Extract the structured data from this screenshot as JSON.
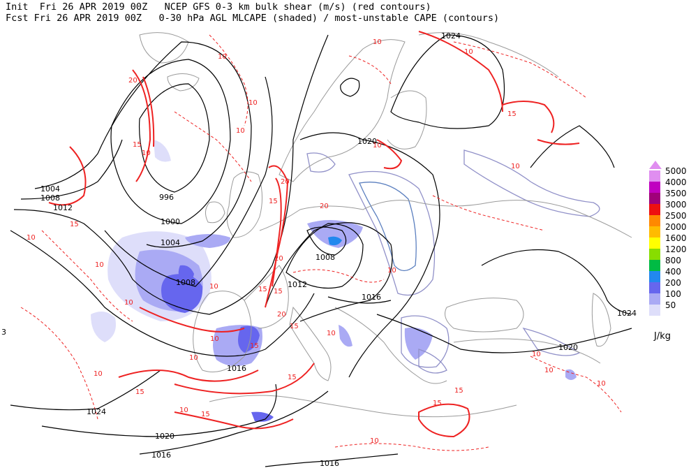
{
  "header": {
    "init_line": "Init  Fri 26 APR 2019 00Z   NCEP GFS 0-3 km bulk shear (m/s) (red contours)",
    "fcst_line": "Fcst Fri 26 APR 2019 00Z   0-30 hPa AGL MLCAPE (shaded) / most-unstable CAPE (contours)"
  },
  "legend": {
    "units": "J/kg",
    "items": [
      {
        "label": "5000",
        "color": "#e08ef0"
      },
      {
        "label": "4000",
        "color": "#c000c0"
      },
      {
        "label": "3500",
        "color": "#a0007a"
      },
      {
        "label": "3000",
        "color": "#ee1010"
      },
      {
        "label": "2500",
        "color": "#ff8800"
      },
      {
        "label": "2000",
        "color": "#ffbb00"
      },
      {
        "label": "1600",
        "color": "#ffff00"
      },
      {
        "label": "1200",
        "color": "#88dd00"
      },
      {
        "label": "800",
        "color": "#00bb44"
      },
      {
        "label": "400",
        "color": "#2288ee"
      },
      {
        "label": "200",
        "color": "#6666ee"
      },
      {
        "label": "100",
        "color": "#aaaaf4"
      },
      {
        "label": "50",
        "color": "#dedefa"
      }
    ]
  },
  "map": {
    "colors": {
      "pressure": "#000000",
      "shear": "#ee2222",
      "cape": "#9090c8",
      "coast": "#9a9a9a"
    },
    "pressure_labels": [
      {
        "text": "1024",
        "id": "p1024-ne"
      },
      {
        "text": "1020",
        "id": "p1020-n"
      },
      {
        "text": "1004",
        "id": "p1004-w1"
      },
      {
        "text": "1008",
        "id": "p1008-w1"
      },
      {
        "text": "1012",
        "id": "p1012-w"
      },
      {
        "text": "996",
        "id": "p996"
      },
      {
        "text": "1000",
        "id": "p1000"
      },
      {
        "text": "1004",
        "id": "p1004-w2"
      },
      {
        "text": "1008",
        "id": "p1008-w2"
      },
      {
        "text": "1008",
        "id": "p1008-c"
      },
      {
        "text": "1012",
        "id": "p1012-c"
      },
      {
        "text": "1016",
        "id": "p1016-c"
      },
      {
        "text": "1016",
        "id": "p1016-sw"
      },
      {
        "text": "1024",
        "id": "p1024-e"
      },
      {
        "text": "1020",
        "id": "p1020-se"
      },
      {
        "text": "1024",
        "id": "p1024-sw"
      },
      {
        "text": "1020",
        "id": "p1020-s"
      },
      {
        "text": "1016",
        "id": "p1016-s"
      },
      {
        "text": "1016",
        "id": "p1016-bot"
      },
      {
        "text": "3",
        "id": "p-edge"
      }
    ],
    "shear_labels": [
      {
        "text": "10"
      },
      {
        "text": "20"
      },
      {
        "text": "15"
      },
      {
        "text": "10"
      },
      {
        "text": "10"
      },
      {
        "text": "15"
      },
      {
        "text": "10"
      },
      {
        "text": "20"
      },
      {
        "text": "15"
      },
      {
        "text": "10"
      },
      {
        "text": "15"
      },
      {
        "text": "10"
      },
      {
        "text": "10"
      },
      {
        "text": "20"
      },
      {
        "text": "15"
      },
      {
        "text": "10"
      },
      {
        "text": "15"
      },
      {
        "text": "10"
      },
      {
        "text": "10"
      },
      {
        "text": "15"
      },
      {
        "text": "10"
      },
      {
        "text": "20"
      },
      {
        "text": "15"
      },
      {
        "text": "10"
      },
      {
        "text": "15"
      },
      {
        "text": "10"
      },
      {
        "text": "10"
      },
      {
        "text": "15"
      },
      {
        "text": "10"
      },
      {
        "text": "10"
      },
      {
        "text": "15"
      },
      {
        "text": "10"
      },
      {
        "text": "10"
      },
      {
        "text": "20"
      },
      {
        "text": "15"
      },
      {
        "text": "10"
      },
      {
        "text": "10"
      },
      {
        "text": "15"
      },
      {
        "text": "10"
      },
      {
        "text": "10"
      }
    ]
  }
}
